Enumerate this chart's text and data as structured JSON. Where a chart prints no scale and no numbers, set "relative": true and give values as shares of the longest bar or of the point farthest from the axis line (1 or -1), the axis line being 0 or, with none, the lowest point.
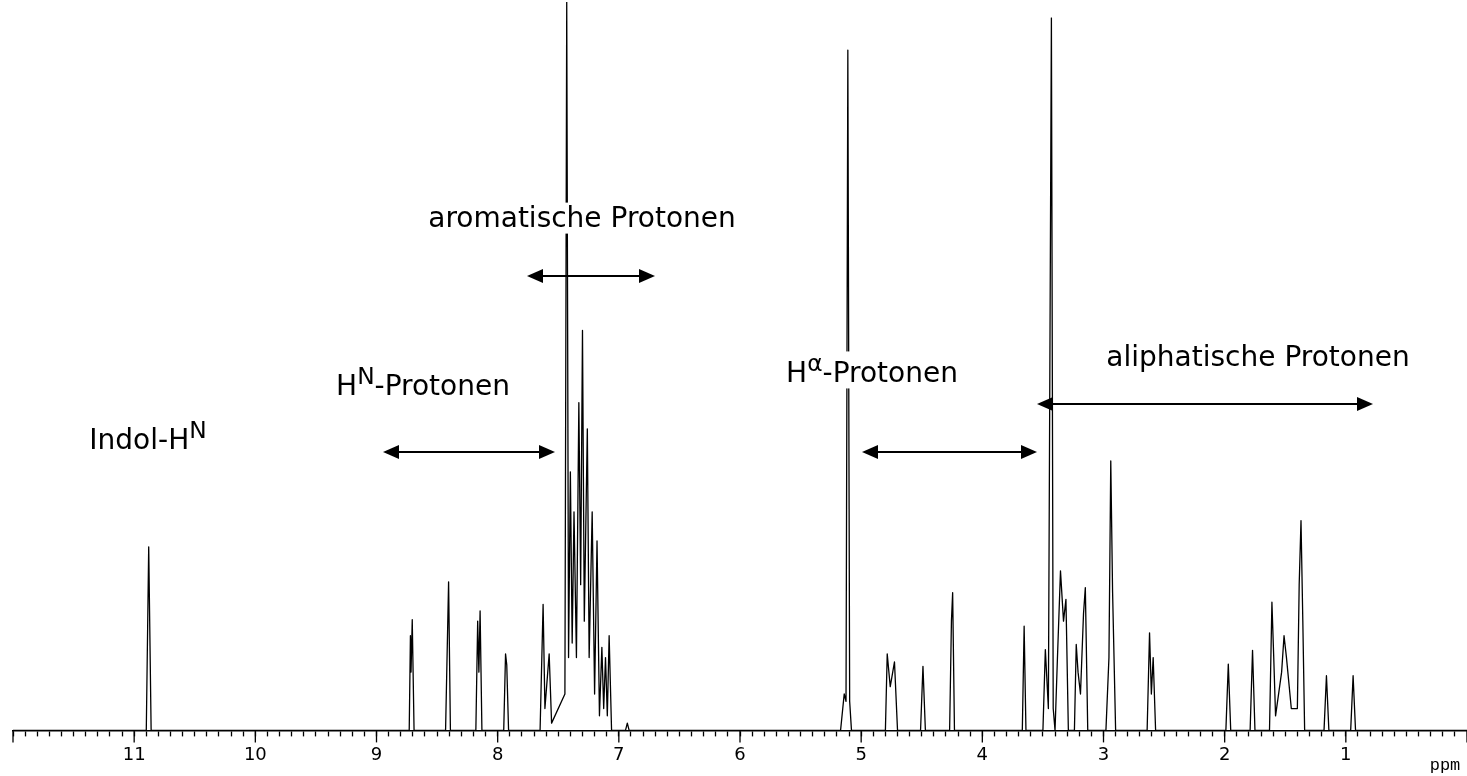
{
  "chart_data": {
    "type": "line",
    "relative": true,
    "xlabel": "ppm",
    "xlim": [
      12,
      0
    ],
    "xticks": [
      {
        "value": 0,
        "label": null
      },
      {
        "value": 0.1,
        "label": null
      },
      {
        "value": 0.2,
        "label": null
      },
      {
        "value": 0.3,
        "label": null
      },
      {
        "value": 0.4,
        "label": null
      },
      {
        "value": 0.5,
        "label": null
      },
      {
        "value": 0.6,
        "label": null
      },
      {
        "value": 0.7,
        "label": null
      },
      {
        "value": 0.8,
        "label": null
      },
      {
        "value": 0.9,
        "label": null
      },
      1,
      {
        "value": 1.1,
        "label": null
      },
      {
        "value": 1.2,
        "label": null
      },
      {
        "value": 1.3,
        "label": null
      },
      {
        "value": 1.4,
        "label": null
      },
      {
        "value": 1.5,
        "label": null
      },
      {
        "value": 1.6,
        "label": null
      },
      {
        "value": 1.7,
        "label": null
      },
      {
        "value": 1.8,
        "label": null
      },
      {
        "value": 1.9,
        "label": null
      },
      2,
      {
        "value": 2.1,
        "label": null
      },
      {
        "value": 2.2,
        "label": null
      },
      {
        "value": 2.3,
        "label": null
      },
      {
        "value": 2.4,
        "label": null
      },
      {
        "value": 2.5,
        "label": null
      },
      {
        "value": 2.6,
        "label": null
      },
      {
        "value": 2.7,
        "label": null
      },
      {
        "value": 2.8,
        "label": null
      },
      {
        "value": 2.9,
        "label": null
      },
      3,
      {
        "value": 3.1,
        "label": null
      },
      {
        "value": 3.2,
        "label": null
      },
      {
        "value": 3.3,
        "label": null
      },
      {
        "value": 3.4,
        "label": null
      },
      {
        "value": 3.5,
        "label": null
      },
      {
        "value": 3.6,
        "label": null
      },
      {
        "value": 3.7,
        "label": null
      },
      {
        "value": 3.8,
        "label": null
      },
      {
        "value": 3.9,
        "label": null
      },
      4,
      {
        "value": 4.1,
        "label": null
      },
      {
        "value": 4.2,
        "label": null
      },
      {
        "value": 4.3,
        "label": null
      },
      {
        "value": 4.4,
        "label": null
      },
      {
        "value": 4.5,
        "label": null
      },
      {
        "value": 4.6,
        "label": null
      },
      {
        "value": 4.7,
        "label": null
      },
      {
        "value": 4.8,
        "label": null
      },
      {
        "value": 4.9,
        "label": null
      },
      5,
      {
        "value": 5.1,
        "label": null
      },
      {
        "value": 5.2,
        "label": null
      },
      {
        "value": 5.3,
        "label": null
      },
      {
        "value": 5.4,
        "label": null
      },
      {
        "value": 5.5,
        "label": null
      },
      {
        "value": 5.6,
        "label": null
      },
      {
        "value": 5.7,
        "label": null
      },
      {
        "value": 5.8,
        "label": null
      },
      {
        "value": 5.9,
        "label": null
      },
      6,
      {
        "value": 6.1,
        "label": null
      },
      {
        "value": 6.2,
        "label": null
      },
      {
        "value": 6.3,
        "label": null
      },
      {
        "value": 6.4,
        "label": null
      },
      {
        "value": 6.5,
        "label": null
      },
      {
        "value": 6.6,
        "label": null
      },
      {
        "value": 6.7,
        "label": null
      },
      {
        "value": 6.8,
        "label": null
      },
      {
        "value": 6.9,
        "label": null
      },
      7,
      {
        "value": 7.1,
        "label": null
      },
      {
        "value": 7.2,
        "label": null
      },
      {
        "value": 7.3,
        "label": null
      },
      {
        "value": 7.4,
        "label": null
      },
      {
        "value": 7.5,
        "label": null
      },
      {
        "value": 7.6,
        "label": null
      },
      {
        "value": 7.7,
        "label": null
      },
      {
        "value": 7.8,
        "label": null
      },
      {
        "value": 7.9,
        "label": null
      },
      8,
      {
        "value": 8.1,
        "label": null
      },
      {
        "value": 8.2,
        "label": null
      },
      {
        "value": 8.3,
        "label": null
      },
      {
        "value": 8.4,
        "label": null
      },
      {
        "value": 8.5,
        "label": null
      },
      {
        "value": 8.6,
        "label": null
      },
      {
        "value": 8.7,
        "label": null
      },
      {
        "value": 8.8,
        "label": null
      },
      {
        "value": 8.9,
        "label": null
      },
      9,
      {
        "value": 9.1,
        "label": null
      },
      {
        "value": 9.2,
        "label": null
      },
      {
        "value": 9.3,
        "label": null
      },
      {
        "value": 9.4,
        "label": null
      },
      {
        "value": 9.5,
        "label": null
      },
      {
        "value": 9.6,
        "label": null
      },
      {
        "value": 9.7,
        "label": null
      },
      {
        "value": 9.8,
        "label": null
      },
      {
        "value": 9.9,
        "label": null
      },
      10,
      {
        "value": 10.1,
        "label": null
      },
      {
        "value": 10.2,
        "label": null
      },
      {
        "value": 10.3,
        "label": null
      },
      {
        "value": 10.4,
        "label": null
      },
      {
        "value": 10.5,
        "label": null
      },
      {
        "value": 10.6,
        "label": null
      },
      {
        "value": 10.7,
        "label": null
      },
      {
        "value": 10.8,
        "label": null
      },
      {
        "value": 10.9,
        "label": null
      },
      11,
      {
        "value": 11.1,
        "label": null
      },
      {
        "value": 11.2,
        "label": null
      },
      {
        "value": 11.3,
        "label": null
      },
      {
        "value": 11.4,
        "label": null
      },
      {
        "value": 11.5,
        "label": null
      },
      {
        "value": 11.6,
        "label": null
      },
      {
        "value": 11.7,
        "label": null
      },
      {
        "value": 11.8,
        "label": null
      },
      {
        "value": 11.9,
        "label": null
      },
      {
        "value": 12,
        "label": null
      }
    ],
    "x": [
      12.0,
      10.9,
      10.88,
      10.86,
      8.73,
      8.72,
      8.715,
      8.705,
      8.69,
      8.43,
      8.405,
      8.39,
      8.18,
      8.165,
      8.155,
      8.145,
      8.13,
      7.95,
      7.935,
      7.925,
      7.91,
      7.65,
      7.625,
      7.61,
      7.575,
      7.555,
      7.445,
      7.43,
      7.415,
      7.4,
      7.385,
      7.37,
      7.35,
      7.33,
      7.315,
      7.3,
      7.285,
      7.26,
      7.245,
      7.22,
      7.2,
      7.18,
      7.16,
      7.14,
      7.125,
      7.11,
      7.095,
      7.08,
      7.06,
      6.945,
      6.93,
      6.915,
      5.17,
      5.14,
      5.125,
      5.11,
      5.095,
      5.08,
      4.8,
      4.785,
      4.76,
      4.725,
      4.7,
      4.51,
      4.49,
      4.47,
      4.27,
      4.255,
      4.245,
      4.23,
      3.67,
      3.655,
      3.64,
      3.5,
      3.48,
      3.455,
      3.43,
      3.415,
      3.4,
      3.38,
      3.355,
      3.33,
      3.31,
      3.29,
      3.24,
      3.225,
      3.21,
      3.19,
      3.165,
      3.15,
      3.13,
      2.98,
      2.955,
      2.94,
      2.925,
      2.9,
      2.64,
      2.62,
      2.605,
      2.59,
      2.57,
      1.99,
      1.97,
      1.95,
      1.79,
      1.77,
      1.75,
      1.63,
      1.61,
      1.595,
      1.58,
      1.53,
      1.51,
      1.49,
      1.45,
      1.4,
      1.385,
      1.37,
      1.355,
      1.34,
      1.18,
      1.16,
      1.14,
      0.96,
      0.94,
      0.92,
      0.0
    ],
    "series": [
      {
        "color": "#000000",
        "values": [
          0,
          0,
          0.252,
          0,
          0,
          0.13,
          0.08,
          0.152,
          0,
          0,
          0.204,
          0,
          0,
          0.15,
          0.08,
          0.164,
          0,
          0,
          0.105,
          0.09,
          0,
          0,
          0.173,
          0.03,
          0.105,
          0.01,
          0.05,
          1.0,
          0.1,
          0.355,
          0.12,
          0.3,
          0.1,
          0.45,
          0.2,
          0.549,
          0.15,
          0.414,
          0.1,
          0.3,
          0.05,
          0.26,
          0.02,
          0.114,
          0.03,
          0.1,
          0.02,
          0.13,
          0,
          0,
          0.01,
          0,
          0,
          0.05,
          0.04,
          0.934,
          0.04,
          0,
          0,
          0.105,
          0.06,
          0.094,
          0,
          0,
          0.088,
          0,
          0,
          0.15,
          0.189,
          0,
          0,
          0.143,
          0,
          0,
          0.111,
          0.03,
          0.978,
          0.03,
          0,
          0.1,
          0.219,
          0.15,
          0.18,
          0,
          0,
          0.118,
          0.08,
          0.05,
          0.16,
          0.196,
          0,
          0,
          0.1,
          0.37,
          0.19,
          0,
          0,
          0.134,
          0.05,
          0.1,
          0,
          0,
          0.091,
          0,
          0,
          0.11,
          0,
          0,
          0.176,
          0.1,
          0.02,
          0.08,
          0.13,
          0.1,
          0.03,
          0.03,
          0.2,
          0.288,
          0.15,
          0,
          0,
          0.075,
          0,
          0,
          0.075,
          0,
          0
        ]
      }
    ],
    "annotations": [
      "Indol-H$^{N}$",
      "H$^{N}$-Protonen",
      "aromatische Protonen",
      "H$^{α}$-Protonen",
      "aliphatische Protonen"
    ]
  }
}
